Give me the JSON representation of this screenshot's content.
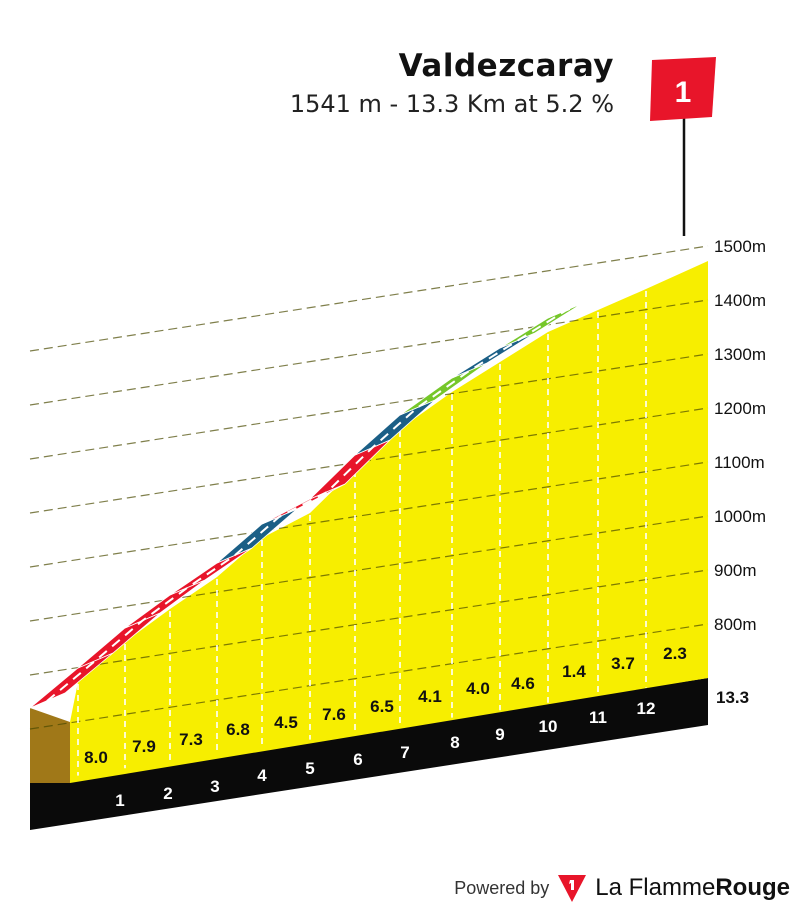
{
  "header": {
    "climb_name": "Valdezcaray",
    "climb_info": "1541 m - 13.3 Km at 5.2 %"
  },
  "flag": {
    "category": "1",
    "color": "#e8152a"
  },
  "footer": {
    "powered_by": "Powered by",
    "brand_regular": "La Flamme",
    "brand_bold": "Rouge"
  },
  "colors": {
    "profile_fill": "#f7ee00",
    "base_dark": "#0a0a0a",
    "start_face": "#a07818",
    "grade_red": "#e8152a",
    "grade_blue": "#1b5f86",
    "grade_green": "#76c72a"
  },
  "chart_data": {
    "type": "area",
    "title": "Valdezcaray",
    "x_unit": "km",
    "ylabel_unit": "m",
    "km_labels": [
      "1",
      "2",
      "3",
      "4",
      "5",
      "6",
      "7",
      "8",
      "9",
      "10",
      "11",
      "12"
    ],
    "total_label": "13.3",
    "segments": [
      {
        "km": 1,
        "grade": "8.0",
        "color_key": "grade_red"
      },
      {
        "km": 2,
        "grade": "7.9",
        "color_key": "grade_red"
      },
      {
        "km": 3,
        "grade": "7.3",
        "color_key": "grade_red"
      },
      {
        "km": 4,
        "grade": "6.8",
        "color_key": "grade_red"
      },
      {
        "km": 5,
        "grade": "4.5",
        "color_key": "grade_blue"
      },
      {
        "km": 6,
        "grade": "7.6",
        "color_key": "grade_red"
      },
      {
        "km": 7,
        "grade": "6.5",
        "color_key": "grade_red"
      },
      {
        "km": 8,
        "grade": "4.1",
        "color_key": "grade_blue"
      },
      {
        "km": 9,
        "grade": "4.0",
        "color_key": "grade_green"
      },
      {
        "km": 10,
        "grade": "4.6",
        "color_key": "grade_blue"
      },
      {
        "km": 11,
        "grade": "1.4",
        "color_key": "grade_green"
      },
      {
        "km": 12,
        "grade": "3.7",
        "color_key": "grade_green"
      },
      {
        "km": 13.3,
        "grade": "2.3",
        "color_key": "grade_green"
      }
    ],
    "altitude_ticks": [
      "800m",
      "900m",
      "1000m",
      "1100m",
      "1200m",
      "1300m",
      "1400m",
      "1500m"
    ],
    "summit_altitude": 1541
  }
}
